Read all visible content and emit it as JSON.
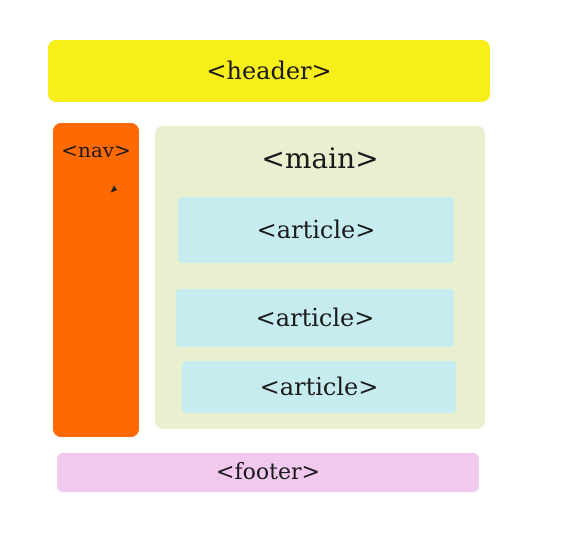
{
  "header": {
    "label": "<header>"
  },
  "nav": {
    "label": "<nav>"
  },
  "main": {
    "label": "<main>",
    "articles": [
      {
        "label": "<article>"
      },
      {
        "label": "<article>"
      },
      {
        "label": "<article>"
      }
    ]
  },
  "footer": {
    "label": "<footer>"
  },
  "colors": {
    "header": "#f7ee1a",
    "nav": "#ff6a00",
    "main": "#e8f0cf",
    "article": "#c6ecef",
    "footer": "#f2c9ee"
  }
}
